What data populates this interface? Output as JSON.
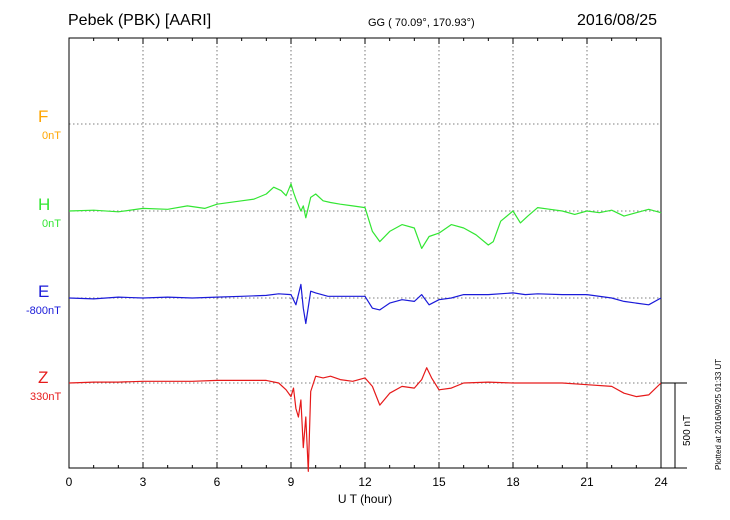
{
  "header": {
    "station": "Pebek (PBK)  [AARI]",
    "coords": "GG ( 70.09°, 170.93°)",
    "date": "2016/08/25"
  },
  "footer": {
    "plotted": "Plotted at 2016/09/25 01:33 UT",
    "scale_label": "500 nT"
  },
  "chart_data": {
    "type": "line",
    "xlabel": "U T (hour)",
    "xlim": [
      0,
      24
    ],
    "xticks": [
      "0",
      "3",
      "6",
      "9",
      "12",
      "15",
      "18",
      "21",
      "24"
    ],
    "scale_bar_nT": 500,
    "grid": true,
    "series": [
      {
        "name": "F",
        "baseline": "0nT",
        "color": "#ffa500",
        "x": [],
        "y": []
      },
      {
        "name": "H",
        "baseline": "0nT",
        "color": "#33e633",
        "x": [
          0,
          1,
          2,
          3,
          4,
          4.8,
          5.5,
          6,
          7,
          7.5,
          8,
          8.3,
          8.6,
          8.8,
          9,
          9.1,
          9.2,
          9.4,
          9.5,
          9.6,
          9.8,
          10,
          10.3,
          10.6,
          11,
          11.5,
          12,
          12.3,
          12.6,
          13,
          13.5,
          14,
          14.3,
          14.6,
          15,
          15.5,
          16,
          16.5,
          17,
          17.2,
          17.5,
          18,
          18.3,
          18.6,
          19,
          19.5,
          20,
          20.5,
          21,
          21.5,
          22,
          22.5,
          23,
          23.5,
          24
        ],
        "y": [
          0,
          5,
          -5,
          15,
          10,
          30,
          15,
          40,
          60,
          70,
          100,
          140,
          120,
          90,
          160,
          110,
          70,
          0,
          30,
          -40,
          80,
          100,
          60,
          50,
          40,
          30,
          20,
          -120,
          -180,
          -120,
          -80,
          -100,
          -220,
          -150,
          -130,
          -80,
          -100,
          -140,
          -200,
          -180,
          -60,
          0,
          -70,
          -30,
          20,
          10,
          0,
          -20,
          0,
          -10,
          5,
          -30,
          -10,
          10,
          -10
        ]
      },
      {
        "name": "E",
        "baseline": "-800nT",
        "color": "#1a1ad9",
        "x": [
          0,
          1,
          2,
          3,
          4,
          5,
          6,
          7,
          8,
          8.5,
          9,
          9.2,
          9.4,
          9.5,
          9.6,
          9.8,
          10,
          10.5,
          11,
          11.5,
          12,
          12.3,
          12.6,
          13,
          13.5,
          14,
          14.3,
          14.6,
          15,
          15.5,
          16,
          17,
          18,
          18.5,
          19,
          20,
          21,
          22,
          22.5,
          23,
          23.5,
          24
        ],
        "y": [
          0,
          -5,
          5,
          0,
          5,
          0,
          5,
          10,
          15,
          25,
          20,
          -40,
          80,
          -60,
          -150,
          40,
          30,
          10,
          10,
          10,
          10,
          -60,
          -70,
          -30,
          -10,
          -20,
          20,
          -40,
          -10,
          0,
          20,
          20,
          30,
          20,
          25,
          20,
          20,
          0,
          -20,
          -30,
          -40,
          0
        ]
      },
      {
        "name": "Z",
        "baseline": "330nT",
        "color": "#e61a1a",
        "x": [
          0,
          1,
          2,
          3,
          4,
          5,
          6,
          7,
          8,
          8.5,
          8.8,
          9,
          9.1,
          9.2,
          9.3,
          9.4,
          9.5,
          9.6,
          9.7,
          9.8,
          10,
          10.3,
          10.6,
          11,
          11.5,
          12,
          12.3,
          12.6,
          13,
          13.5,
          14,
          14.3,
          14.5,
          14.7,
          15,
          15.5,
          16,
          17,
          18,
          19,
          20,
          21,
          22,
          22.5,
          23,
          23.5,
          24
        ],
        "y": [
          0,
          5,
          5,
          10,
          10,
          10,
          15,
          15,
          15,
          0,
          -40,
          -80,
          -30,
          -150,
          -200,
          -100,
          -380,
          -200,
          -520,
          -50,
          40,
          30,
          40,
          20,
          10,
          30,
          -20,
          -130,
          -60,
          -20,
          -30,
          20,
          90,
          30,
          -40,
          -30,
          0,
          5,
          0,
          0,
          0,
          -10,
          -20,
          -60,
          -80,
          -70,
          0
        ]
      }
    ]
  }
}
